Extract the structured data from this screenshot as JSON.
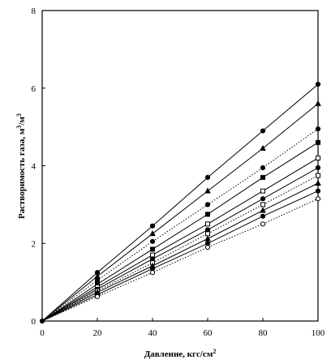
{
  "chart_data": {
    "type": "line",
    "title": "",
    "xlabel": "Давление, кгс/см",
    "xlabel_sup": "2",
    "ylabel": "Растворимость газа, м",
    "ylabel_sup1": "3",
    "ylabel_mid": "/м",
    "ylabel_sup2": "3",
    "xlim": [
      0,
      100
    ],
    "ylim": [
      0,
      8
    ],
    "xticks": [
      0,
      20,
      40,
      60,
      80,
      100
    ],
    "yticks": [
      0,
      2,
      4,
      6,
      8
    ],
    "grid": false,
    "x": [
      0,
      20,
      40,
      60,
      80,
      100
    ],
    "series": [
      {
        "marker": "filled-circle",
        "line": "solid",
        "values": [
          0,
          1.25,
          2.45,
          3.7,
          4.9,
          6.1
        ]
      },
      {
        "marker": "filled-triangle",
        "line": "solid",
        "values": [
          0,
          1.15,
          2.25,
          3.35,
          4.45,
          5.6
        ]
      },
      {
        "marker": "filled-circle",
        "line": "dotted",
        "values": [
          0,
          1.05,
          2.05,
          3.0,
          3.95,
          4.95
        ]
      },
      {
        "marker": "filled-square",
        "line": "solid",
        "values": [
          0,
          0.95,
          1.85,
          2.75,
          3.7,
          4.6
        ]
      },
      {
        "marker": "open-square",
        "line": "solid",
        "values": [
          0,
          0.88,
          1.7,
          2.5,
          3.35,
          4.2
        ]
      },
      {
        "marker": "filled-circle",
        "line": "solid",
        "values": [
          0,
          0.82,
          1.6,
          2.35,
          3.15,
          3.95
        ]
      },
      {
        "marker": "open-square",
        "line": "dotted",
        "values": [
          0,
          0.78,
          1.5,
          2.25,
          3.0,
          3.75
        ]
      },
      {
        "marker": "filled-triangle",
        "line": "solid",
        "values": [
          0,
          0.74,
          1.42,
          2.12,
          2.85,
          3.55
        ]
      },
      {
        "marker": "filled-circle",
        "line": "solid",
        "values": [
          0,
          0.68,
          1.35,
          2.0,
          2.7,
          3.35
        ]
      },
      {
        "marker": "open-circle",
        "line": "dotted",
        "values": [
          0,
          0.63,
          1.25,
          1.9,
          2.5,
          3.15
        ]
      }
    ]
  }
}
